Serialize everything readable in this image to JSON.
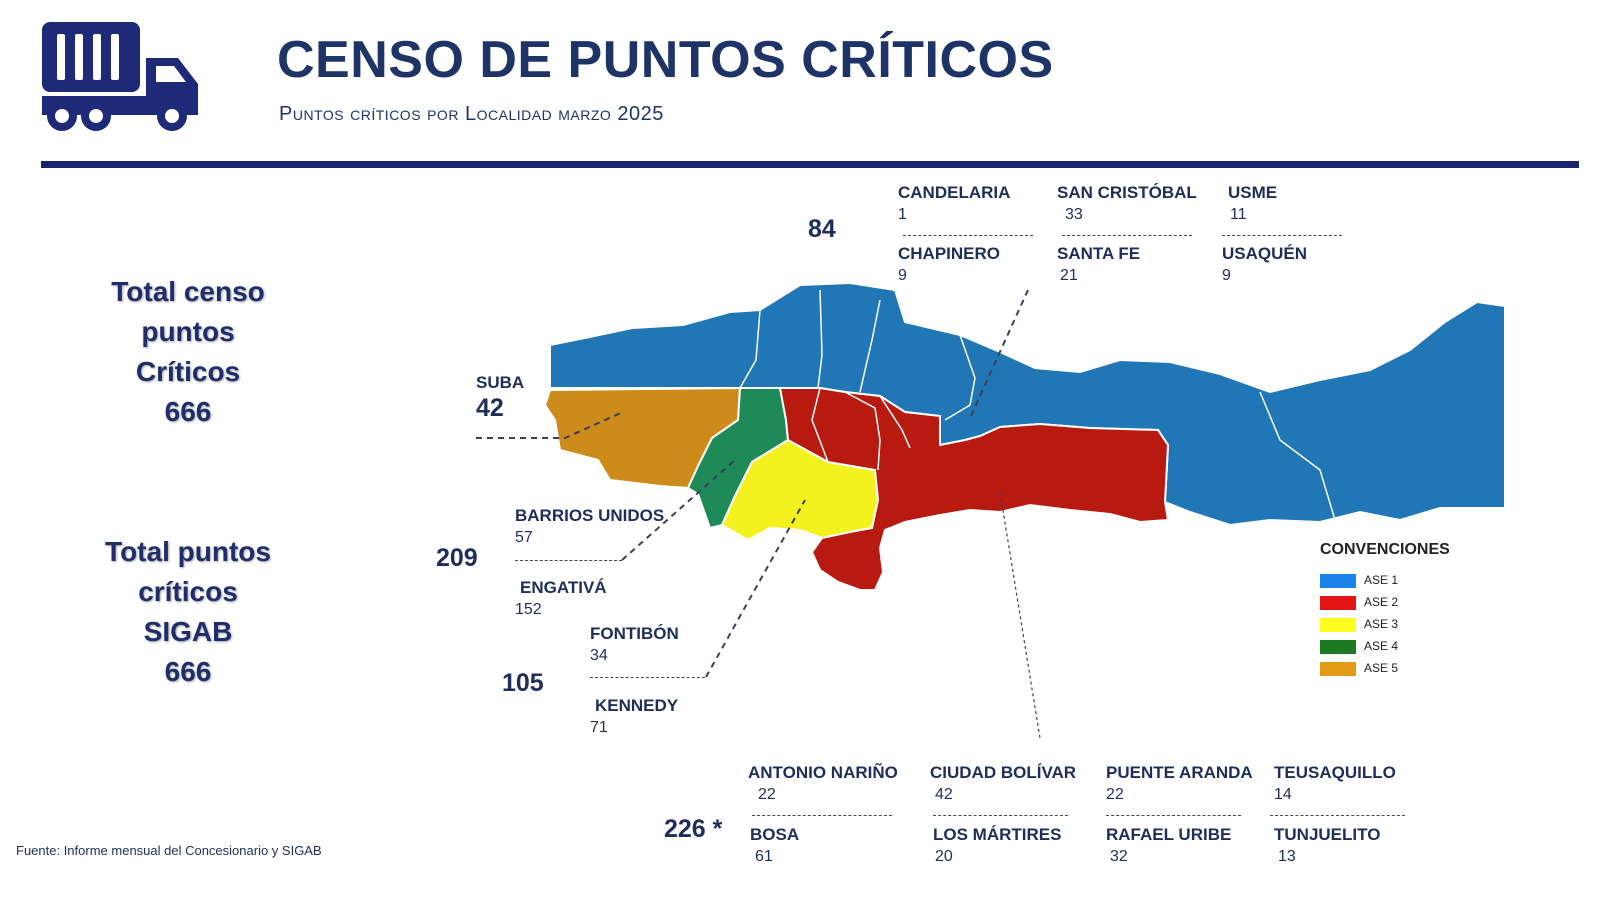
{
  "header": {
    "title": "CENSO DE PUNTOS CRÍTICOS",
    "subtitle": "Puntos críticos por Localidad marzo 2025",
    "icon": "truck-icon"
  },
  "totals": {
    "censo": [
      "Total censo",
      "puntos",
      "Críticos",
      "666"
    ],
    "sigab": [
      "Total puntos",
      "críticos",
      "SIGAB",
      "666"
    ]
  },
  "groups": {
    "ase1": {
      "total": "84",
      "color": "#1f77b8",
      "localidades": [
        {
          "name": "CANDELARIA",
          "value": "1"
        },
        {
          "name": "SAN CRISTÓBAL",
          "value": "33"
        },
        {
          "name": "USME",
          "value": "11"
        },
        {
          "name": "CHAPINERO",
          "value": "9"
        },
        {
          "name": "SANTA FE",
          "value": "21"
        },
        {
          "name": "USAQUÉN",
          "value": "9"
        }
      ]
    },
    "ase5": {
      "color": "#d18c1a",
      "localidades": [
        {
          "name": "SUBA",
          "value": "42"
        }
      ]
    },
    "ase4": {
      "total": "209",
      "color": "#1e8a4e",
      "localidades": [
        {
          "name": "BARRIOS UNIDOS",
          "value": "57"
        },
        {
          "name": "ENGATIVÁ",
          "value": "152"
        }
      ]
    },
    "ase3": {
      "total": "105",
      "color": "#f2f21d",
      "localidades": [
        {
          "name": "FONTIBÓN",
          "value": "34"
        },
        {
          "name": "KENNEDY",
          "value": "71"
        }
      ]
    },
    "ase2": {
      "total": "226 *",
      "color": "#c0160f",
      "localidades": [
        {
          "name": "ANTONIO NARIÑO",
          "value": "22"
        },
        {
          "name": "CIUDAD BOLÍVAR",
          "value": "42"
        },
        {
          "name": "PUENTE ARANDA",
          "value": "22"
        },
        {
          "name": "TEUSAQUILLO",
          "value": "14"
        },
        {
          "name": "BOSA",
          "value": "61"
        },
        {
          "name": "LOS MÁRTIRES",
          "value": "20"
        },
        {
          "name": "RAFAEL URIBE",
          "value": "32"
        },
        {
          "name": "TUNJUELITO",
          "value": "13"
        }
      ]
    }
  },
  "legend": {
    "title": "CONVENCIONES",
    "items": [
      {
        "label": "ASE 1",
        "color": "#1a82e8"
      },
      {
        "label": "ASE 2",
        "color": "#e21414"
      },
      {
        "label": "ASE 3",
        "color": "#ffff1e"
      },
      {
        "label": "ASE 4",
        "color": "#1b7a22"
      },
      {
        "label": "ASE 5",
        "color": "#e59a17"
      }
    ]
  },
  "source": "Fuente: Informe mensual del Concesionario y SIGAB"
}
